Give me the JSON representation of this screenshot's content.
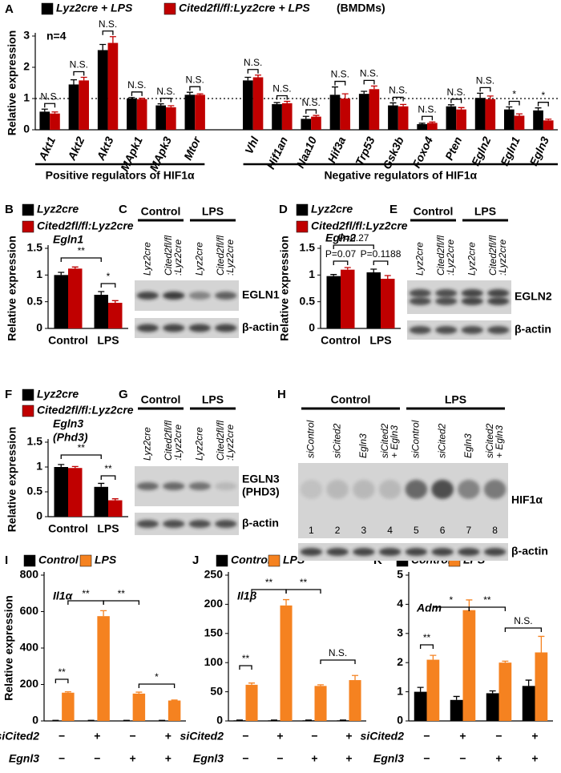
{
  "chart_data": [
    {
      "type": "bar",
      "panel": "A",
      "ylabel": "Relative expression",
      "note": "n=4",
      "subtitle": "(BMDMs)",
      "categories": [
        "Akt1",
        "Akt2",
        "Akt3",
        "MApk1",
        "MApk3",
        "Mtor",
        null,
        "Vhl",
        "Hif1an",
        "Naa10",
        "Hif3a",
        "Trp53",
        "Gsk3b",
        "Foxo4",
        "Pten",
        "Egln2",
        "Egln1",
        "Egln3"
      ],
      "series": [
        {
          "name": "Lyz2cre + LPS",
          "color": "#000000",
          "values": [
            0.58,
            1.45,
            2.55,
            1.0,
            0.78,
            1.12,
            null,
            1.58,
            0.82,
            0.35,
            1.12,
            1.15,
            0.78,
            0.18,
            0.75,
            1.02,
            0.65,
            0.62
          ],
          "errors": [
            0.08,
            0.15,
            0.18,
            0.03,
            0.05,
            0.08,
            null,
            0.1,
            0.05,
            0.08,
            0.25,
            0.08,
            0.08,
            0.03,
            0.05,
            0.15,
            0.08,
            0.08
          ]
        },
        {
          "name": "Cited2fl/fl:Lyz2cre + LPS",
          "color": "#c00000",
          "values": [
            0.52,
            1.58,
            2.78,
            0.98,
            0.72,
            1.12,
            null,
            1.68,
            0.85,
            0.42,
            1.0,
            1.3,
            0.75,
            0.22,
            0.65,
            0.98,
            0.45,
            0.3
          ],
          "errors": [
            0.05,
            0.1,
            0.2,
            0.03,
            0.05,
            0.03,
            null,
            0.07,
            0.06,
            0.04,
            0.15,
            0.1,
            0.06,
            0.03,
            0.06,
            0.1,
            0.06,
            0.04
          ]
        }
      ],
      "annotations": [
        "N.S.",
        "N.S.",
        "N.S.",
        "N.S.",
        "N.S.",
        "N.S.",
        null,
        "N.S.",
        "N.S.",
        "N.S.",
        "N.S.",
        "N.S.",
        "N.S.",
        "N.S.",
        "N.S.",
        "N.S.",
        "*",
        "*"
      ],
      "group_labels": [
        "Positive regulators of HIF1α",
        "Negative regulators of HIF1α"
      ],
      "ylim": [
        0,
        3
      ],
      "yticks": [
        0,
        1,
        2,
        3
      ],
      "reference_line": 1
    },
    {
      "type": "bar",
      "panel": "B",
      "ylabel": "Relative expression",
      "gene_label": [
        "Egln1"
      ],
      "categories": [
        "Control",
        "LPS"
      ],
      "series": [
        {
          "name": "Lyz2cre",
          "color": "#000000",
          "values": [
            1.0,
            0.63
          ],
          "errors": [
            0.05,
            0.06
          ]
        },
        {
          "name": "Cited2fl/fl:Lyz2cre",
          "color": "#c00000",
          "values": [
            1.12,
            0.48
          ],
          "errors": [
            0.03,
            0.04
          ]
        }
      ],
      "annotations": [
        "**",
        "*"
      ],
      "ylim": [
        0,
        1.5
      ],
      "yticks": [
        0,
        0.5,
        1,
        1.5
      ]
    },
    {
      "type": "bar",
      "panel": "D",
      "ylabel": "Relative expression",
      "gene_label": [
        "Egln2"
      ],
      "categories": [
        "Control",
        "LPS"
      ],
      "series": [
        {
          "name": "Lyz2cre",
          "color": "#000000",
          "values": [
            0.98,
            1.05
          ],
          "errors": [
            0.03,
            0.06
          ]
        },
        {
          "name": "Cited2fl/fl:Lyz2cre",
          "color": "#c00000",
          "values": [
            1.1,
            0.93
          ],
          "errors": [
            0.04,
            0.06
          ]
        }
      ],
      "annotations": [
        "P=0.27",
        "P=0.07",
        "P=0.1188"
      ],
      "ylim": [
        0,
        1.5
      ],
      "yticks": [
        0,
        0.5,
        1,
        1.5
      ]
    },
    {
      "type": "bar",
      "panel": "F",
      "ylabel": "Relative expression",
      "gene_label": [
        "Egln3",
        "(Phd3)"
      ],
      "categories": [
        "Control",
        "LPS"
      ],
      "series": [
        {
          "name": "Lyz2cre",
          "color": "#000000",
          "values": [
            1.0,
            0.6
          ],
          "errors": [
            0.05,
            0.07
          ]
        },
        {
          "name": "Cited2fl/fl:Lyz2cre",
          "color": "#c00000",
          "values": [
            0.98,
            0.33
          ],
          "errors": [
            0.03,
            0.03
          ]
        }
      ],
      "annotations": [
        "**",
        "**"
      ],
      "ylim": [
        0,
        1.5
      ],
      "yticks": [
        0,
        0.5,
        1,
        1.5
      ]
    },
    {
      "type": "bar",
      "panel": "I",
      "ylabel": "Relative expression",
      "gene_label": [
        "Il1α"
      ],
      "categories": [
        null,
        null,
        null,
        null
      ],
      "x_rows": [
        {
          "label": "siCited2",
          "values": [
            "−",
            "+",
            "−",
            "+"
          ]
        },
        {
          "label": "Egnl3",
          "values": [
            "−",
            "−",
            "+",
            "+"
          ]
        }
      ],
      "series": [
        {
          "name": "Control",
          "color": "#000000",
          "values": [
            2,
            2,
            2,
            2
          ],
          "errors": [
            1,
            1,
            1,
            1
          ]
        },
        {
          "name": "LPS",
          "color": "#f58220",
          "values": [
            155,
            575,
            150,
            112
          ],
          "errors": [
            5,
            30,
            8,
            3
          ]
        }
      ],
      "annotations": [
        "**",
        "**",
        "**",
        "*"
      ],
      "ylim": [
        0,
        800
      ],
      "yticks": [
        0,
        200,
        400,
        600,
        800
      ]
    },
    {
      "type": "bar",
      "panel": "J",
      "gene_label": [
        "Il1β"
      ],
      "categories": [
        null,
        null,
        null,
        null
      ],
      "x_rows": [
        {
          "label": "siCited2",
          "values": [
            "−",
            "+",
            "−",
            "+"
          ]
        },
        {
          "label": "Egnl3",
          "values": [
            "−",
            "−",
            "+",
            "+"
          ]
        }
      ],
      "series": [
        {
          "name": "Control",
          "color": "#000000",
          "values": [
            1,
            1,
            1,
            1
          ],
          "errors": [
            0.5,
            0.5,
            0.5,
            0.5
          ]
        },
        {
          "name": "LPS",
          "color": "#f58220",
          "values": [
            62,
            198,
            60,
            70
          ],
          "errors": [
            3,
            10,
            2,
            8
          ]
        }
      ],
      "annotations": [
        "**",
        "**",
        "**",
        "N.S."
      ],
      "ylim": [
        0,
        250
      ],
      "yticks": [
        0,
        50,
        100,
        150,
        200,
        250
      ]
    },
    {
      "type": "bar",
      "panel": "K",
      "gene_label": [
        "Adm"
      ],
      "categories": [
        null,
        null,
        null,
        null
      ],
      "x_rows": [
        {
          "label": "siCited2",
          "values": [
            "−",
            "+",
            "−",
            "+"
          ]
        },
        {
          "label": "Egnl3",
          "values": [
            "−",
            "−",
            "+",
            "+"
          ]
        }
      ],
      "series": [
        {
          "name": "Control",
          "color": "#000000",
          "values": [
            1.0,
            0.72,
            0.95,
            1.2
          ],
          "errors": [
            0.15,
            0.12,
            0.08,
            0.2
          ]
        },
        {
          "name": "LPS",
          "color": "#f58220",
          "values": [
            2.1,
            3.8,
            2.0,
            2.35
          ],
          "errors": [
            0.15,
            0.35,
            0.05,
            0.55
          ]
        }
      ],
      "annotations": [
        "**",
        "*",
        "**",
        "N.S."
      ],
      "ylim": [
        0,
        5
      ],
      "yticks": [
        0,
        1,
        2,
        3,
        4,
        5
      ]
    }
  ],
  "blots": [
    {
      "panel": "C",
      "groups": [
        "Control",
        "LPS"
      ],
      "lanes": [
        [
          "Lyz2cre"
        ],
        [
          "Cited2fl/fl",
          ":Lyz2cre"
        ],
        [
          "Lyz2cre"
        ],
        [
          "Cited2fl/fl",
          ":Lyz2cre"
        ]
      ],
      "bands": [
        [
          "EGLN1"
        ],
        [
          "β-actin"
        ]
      ]
    },
    {
      "panel": "E",
      "groups": [
        "Control",
        "LPS"
      ],
      "lanes": [
        [
          "Lyz2cre"
        ],
        [
          "Cited2fl/fl",
          ":Lyz2cre"
        ],
        [
          "Lyz2cre"
        ],
        [
          "Cited2fl/fl",
          ":Lyz2cre"
        ]
      ],
      "bands": [
        [
          "EGLN2"
        ],
        [
          "β-actin"
        ]
      ]
    },
    {
      "panel": "G",
      "groups": [
        "Control",
        "LPS"
      ],
      "lanes": [
        [
          "Lyz2cre"
        ],
        [
          "Cited2fl/fl",
          ":Lyz2cre"
        ],
        [
          "Lyz2cre"
        ],
        [
          "Cited2fl/fl",
          ":Lyz2cre"
        ]
      ],
      "bands": [
        [
          "EGLN3",
          "(PHD3)"
        ],
        [
          "β-actin"
        ]
      ]
    },
    {
      "panel": "H",
      "groups": [
        "Control",
        "LPS"
      ],
      "lanes": [
        [
          "siControl"
        ],
        [
          "siCited2"
        ],
        [
          "Egln3"
        ],
        [
          "siCited2",
          "+ Egln3"
        ],
        [
          "siControl"
        ],
        [
          "siCited2"
        ],
        [
          "Egln3"
        ],
        [
          "siCited2",
          "+ Egln3"
        ]
      ],
      "lane_numbers": [
        "1",
        "2",
        "3",
        "4",
        "5",
        "6",
        "7",
        "8"
      ],
      "bands": [
        [
          "HIF1α"
        ],
        [
          "β-actin"
        ]
      ]
    }
  ]
}
